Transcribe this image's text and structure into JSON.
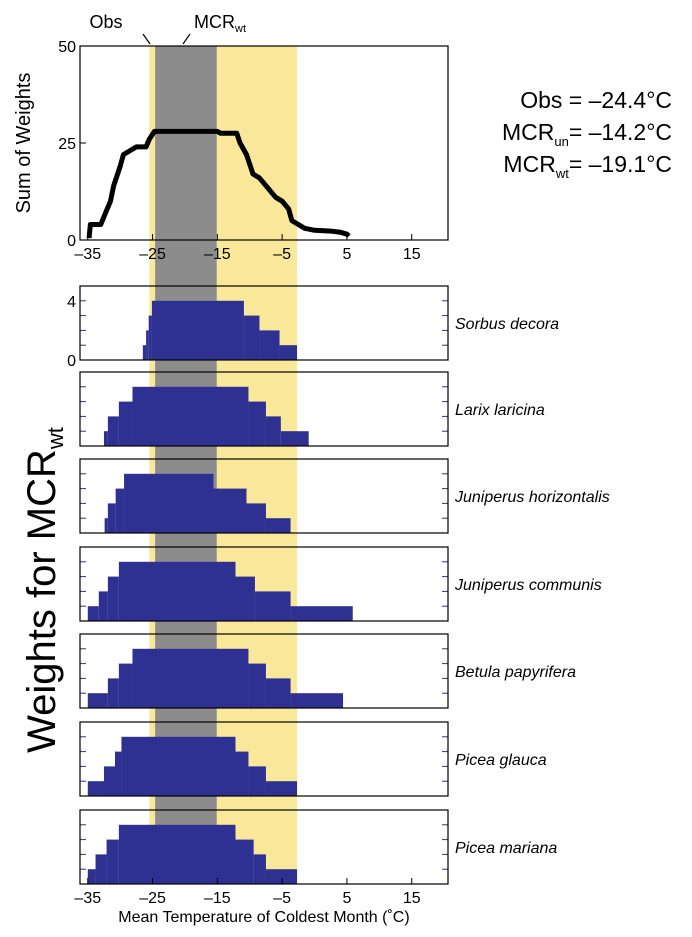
{
  "chart_data": [
    {
      "type": "line",
      "ylabel": "Sum of Weights",
      "color": "#000000",
      "x": [
        -34.8,
        -34.6,
        -33,
        -32.5,
        -31.5,
        -31,
        -30,
        -29.5,
        -28.5,
        -27.5,
        -26,
        -25.5,
        -24.7,
        -21,
        -15,
        -14.5,
        -12,
        -11.5,
        -10.5,
        -9.5,
        -8.5,
        -7.5,
        -6,
        -5,
        -4,
        -3.5,
        -2.5,
        -1.5,
        0,
        2.5,
        4,
        5,
        5.3
      ],
      "values": [
        0.5,
        4,
        4,
        6,
        10,
        14,
        19,
        22,
        23,
        24,
        24,
        26,
        28,
        28,
        28,
        27.5,
        27.5,
        25,
        22,
        17,
        16,
        14,
        11,
        10,
        8,
        5,
        4,
        3,
        2.5,
        2.3,
        2,
        1.5,
        1
      ],
      "xlim": [
        -36.2,
        20.6
      ],
      "ylim": [
        0,
        50
      ],
      "yticks": [
        0,
        25,
        50
      ],
      "xticks": [
        {
          "value": -35,
          "label": "–35"
        },
        {
          "value": -25,
          "label": "–25"
        },
        {
          "value": -15,
          "label": "–15"
        },
        {
          "value": -5,
          "label": "–5"
        },
        5,
        15
      ]
    },
    {
      "type": "histogram",
      "title": "Sorbus decora",
      "color": "#2e3192",
      "xlim": [
        -36.2,
        20.6
      ],
      "ylim": [
        0,
        5
      ],
      "yticks": [
        0,
        4
      ],
      "minor_yticks": [
        1,
        2,
        3
      ],
      "bins": [
        -26.5,
        -26,
        -25.6,
        -25.1,
        -10.9,
        -8.5,
        -5.4,
        -2.7
      ],
      "values": [
        1,
        2,
        3,
        4,
        3,
        2,
        1
      ]
    },
    {
      "type": "histogram",
      "title": "Larix laricina",
      "color": "#2e3192",
      "xlim": [
        -36.2,
        20.6
      ],
      "ylim": [
        0,
        5
      ],
      "minor_yticks": [
        0,
        1,
        2,
        3,
        4
      ],
      "bins": [
        -32.5,
        -31.9,
        -30.2,
        -28.1,
        -10.2,
        -7.5,
        -5.2,
        -0.9
      ],
      "values": [
        1,
        2,
        3,
        4,
        3,
        2,
        1
      ]
    },
    {
      "type": "histogram",
      "title": "Juniperus horizontalis",
      "color": "#2e3192",
      "xlim": [
        -36.2,
        20.6
      ],
      "ylim": [
        0,
        5
      ],
      "minor_yticks": [
        0,
        1,
        2,
        3,
        4
      ],
      "bins": [
        -32.4,
        -31.9,
        -30.7,
        -29.4,
        -15.6,
        -10.5,
        -7.5,
        -3.7
      ],
      "values": [
        1,
        2,
        3,
        4,
        3,
        2,
        1
      ]
    },
    {
      "type": "histogram",
      "title": "Juniperus communis",
      "color": "#2e3192",
      "xlim": [
        -36.2,
        20.6
      ],
      "ylim": [
        0,
        5
      ],
      "minor_yticks": [
        0,
        1,
        2,
        3,
        4
      ],
      "bins": [
        -35,
        -33.3,
        -31.9,
        -30.2,
        -12.2,
        -9.2,
        -3.7,
        5.9
      ],
      "values": [
        1,
        2,
        3,
        4,
        3,
        2,
        1
      ]
    },
    {
      "type": "histogram",
      "title": "Betula papyrifera",
      "color": "#2e3192",
      "xlim": [
        -36.2,
        20.6
      ],
      "ylim": [
        0,
        5
      ],
      "minor_yticks": [
        0,
        1,
        2,
        3,
        4
      ],
      "bins": [
        -35,
        -31.9,
        -30.2,
        -28.1,
        -10.2,
        -7.5,
        -3.7,
        4.4
      ],
      "values": [
        1,
        2,
        3,
        4,
        3,
        2,
        1
      ]
    },
    {
      "type": "histogram",
      "title": "Picea glauca",
      "color": "#2e3192",
      "xlim": [
        -36.2,
        20.6
      ],
      "ylim": [
        0,
        5
      ],
      "minor_yticks": [
        0,
        1,
        2,
        3,
        4
      ],
      "bins": [
        -35,
        -32.5,
        -30.8,
        -29.8,
        -12.2,
        -10.2,
        -7.5,
        -2.7
      ],
      "values": [
        1,
        2,
        3,
        4,
        3,
        2,
        1
      ]
    },
    {
      "type": "histogram",
      "title": "Picea mariana",
      "color": "#2e3192",
      "xlim": [
        -36.2,
        20.6
      ],
      "ylim": [
        0,
        5
      ],
      "minor_yticks": [
        0,
        1,
        2,
        3,
        4
      ],
      "bins": [
        -35,
        -33.8,
        -32.1,
        -30.2,
        -12.2,
        -9.4,
        -7.5,
        -2.7
      ],
      "values": [
        1,
        2,
        3,
        4,
        3,
        2,
        1
      ],
      "xlabel": "Mean Temperature of Coldest Month (˚C)",
      "xticks": [
        {
          "value": -35,
          "label": "–35"
        },
        {
          "value": -25,
          "label": "–25"
        },
        {
          "value": -15,
          "label": "–15"
        },
        {
          "value": -5,
          "label": "–5"
        },
        5,
        15
      ]
    }
  ],
  "bands": [
    {
      "color": "#f9e79a",
      "range": [
        -25.5,
        -2.7
      ]
    },
    {
      "color": "#8c8c8c",
      "range": [
        -24.6,
        -15.1
      ]
    }
  ],
  "band_labels": [
    {
      "label": "Obs"
    },
    {
      "label": "MCR",
      "sub": "wt"
    }
  ],
  "annotations": [
    {
      "label": "Obs",
      "value": " = –24.4°C"
    },
    {
      "label": "MCR",
      "sub": "un",
      "value": "= –14.2°C"
    },
    {
      "label": "MCR",
      "sub": "wt",
      "value": "= –19.1°C"
    }
  ],
  "figure_ylabel": {
    "label": "Weights for MCR",
    "sub": "wt"
  }
}
